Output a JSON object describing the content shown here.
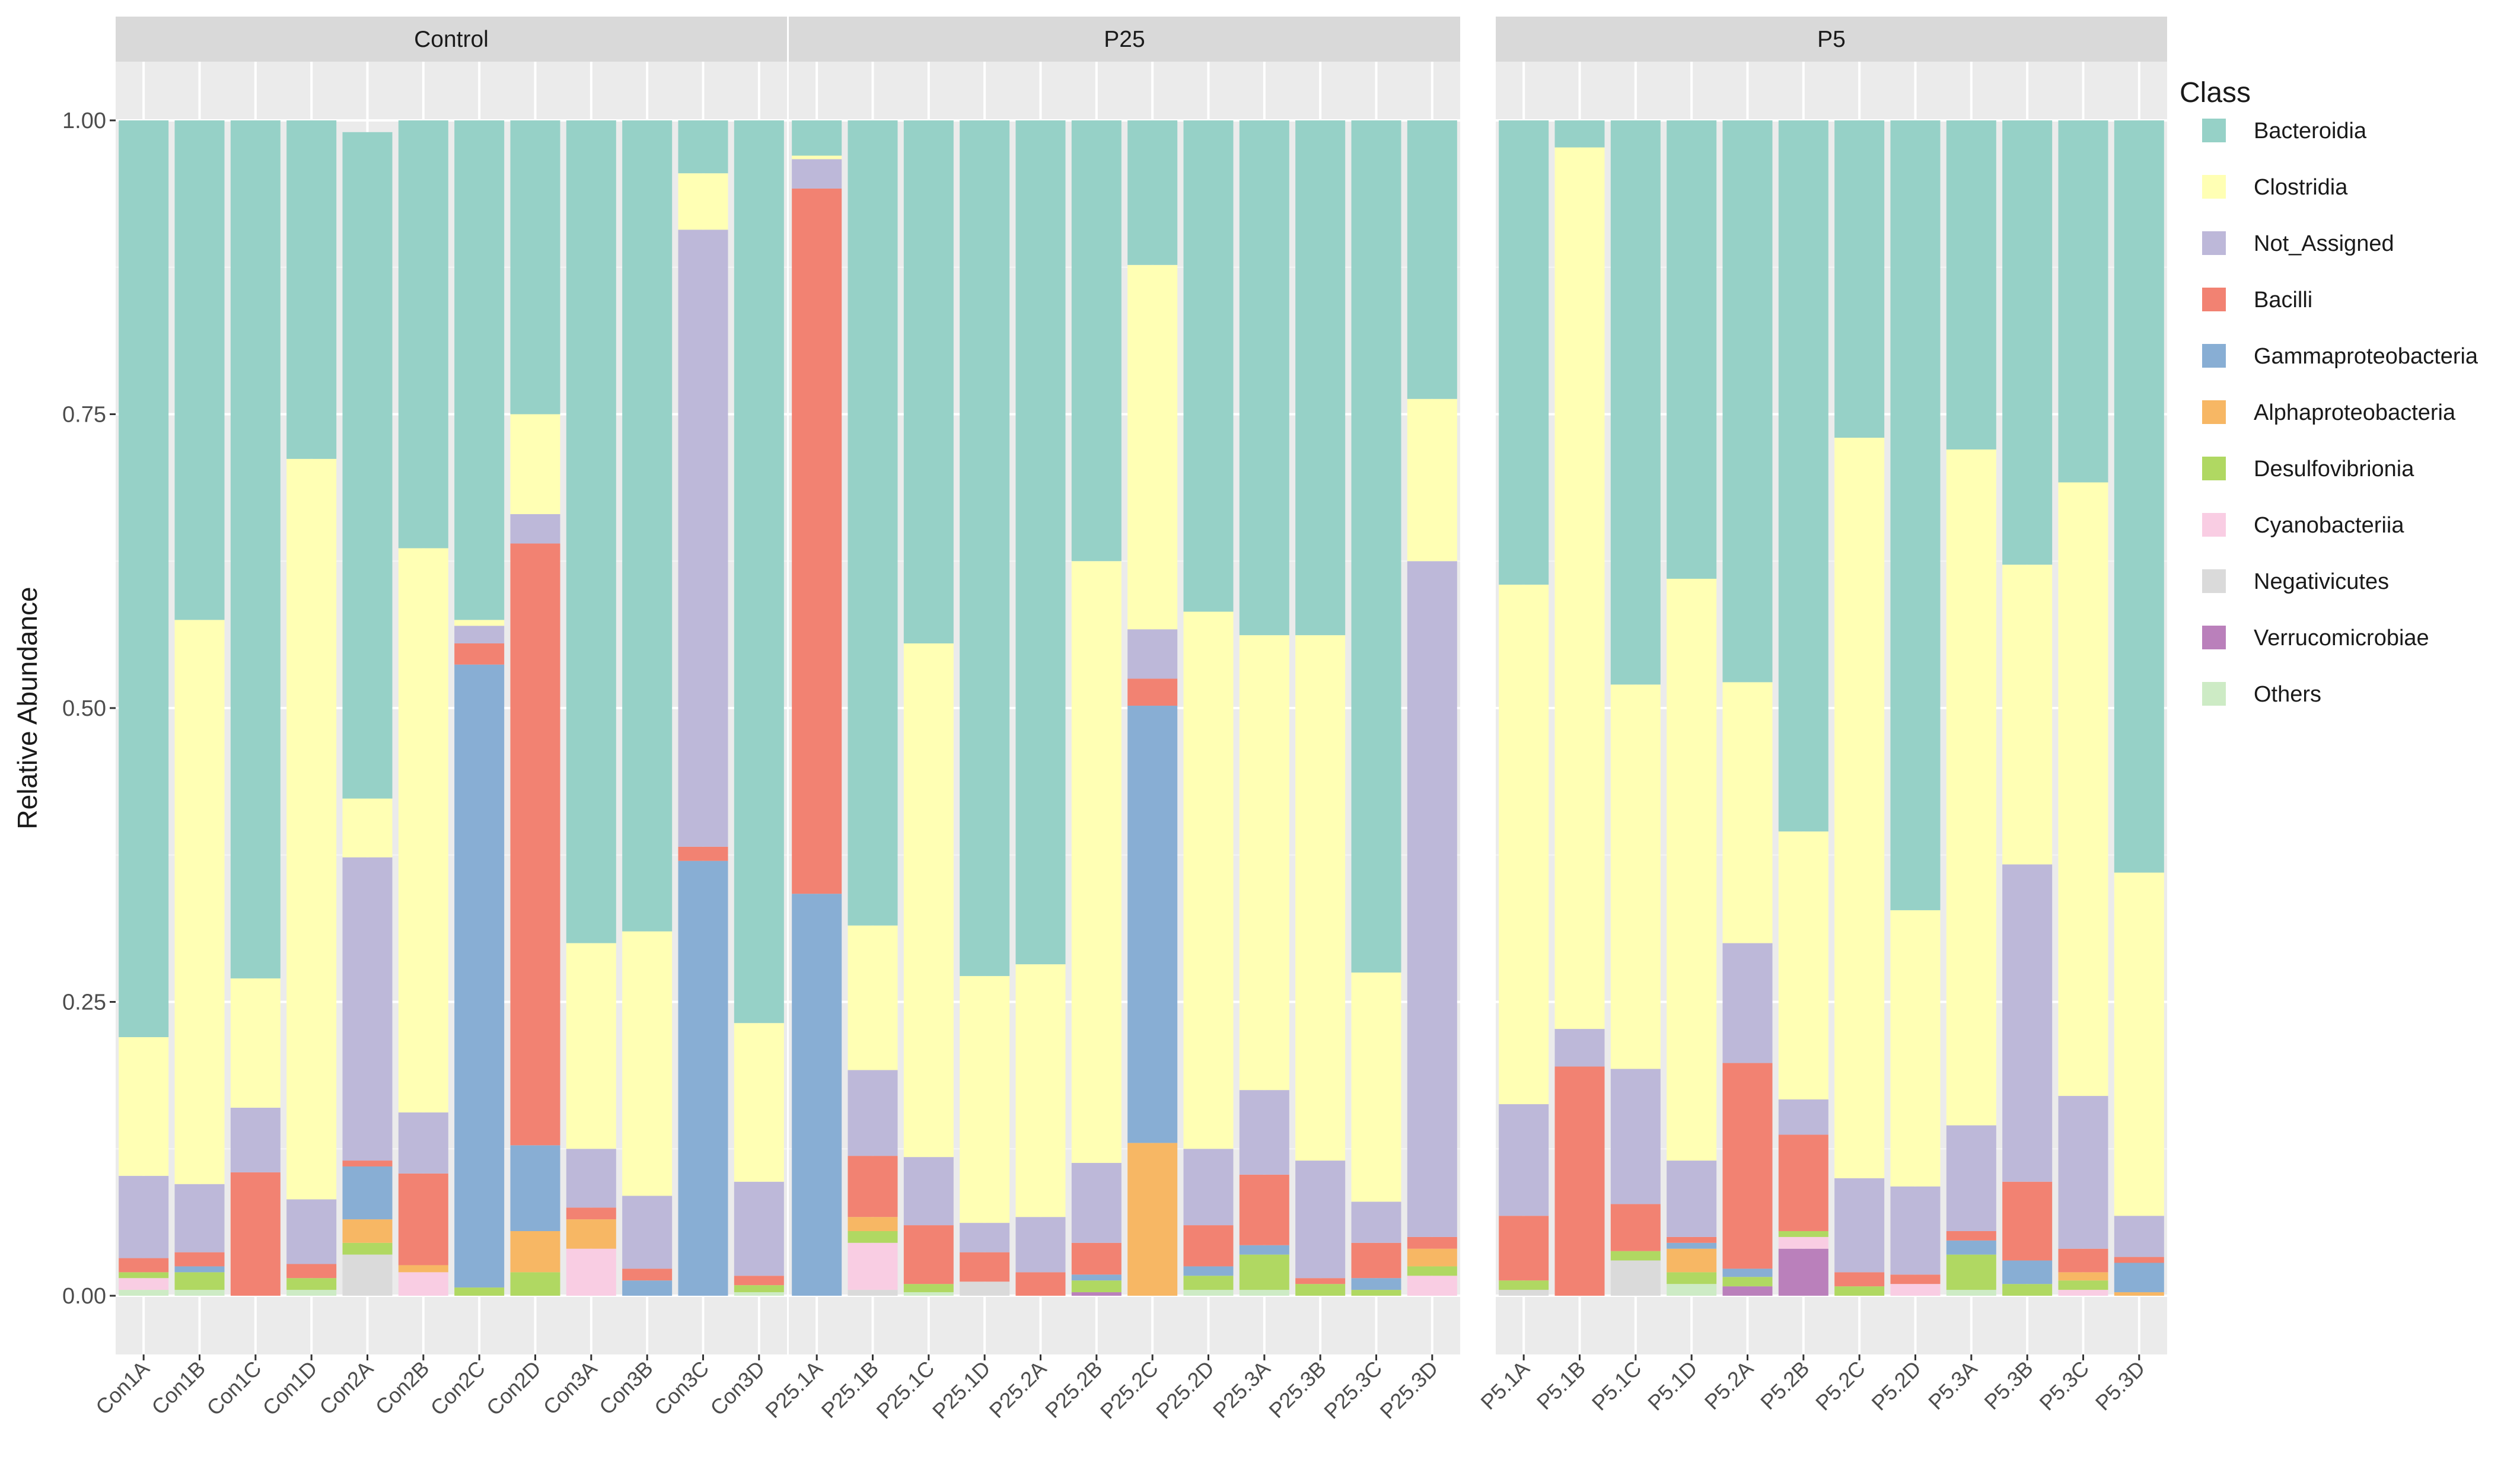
{
  "chart_data": {
    "type": "stacked-bar",
    "ylabel": "Relative Abundance",
    "xlabel": "",
    "ylim": [
      0,
      1
    ],
    "yticks": [
      0,
      0.25,
      0.5,
      0.75,
      1
    ],
    "ytick_labels": [
      "0.00",
      "0.25",
      "0.50",
      "0.75",
      "1.00"
    ],
    "legend": {
      "title": "Class",
      "position": "right",
      "entries": [
        "Bacteroidia",
        "Clostridia",
        "Not_Assigned",
        "Bacilli",
        "Gammaproteobacteria",
        "Alphaproteobacteria",
        "Desulfovibrionia",
        "Cyanobacteriia",
        "Negativicutes",
        "Verrucomicrobiae",
        "Others"
      ]
    },
    "colors": {
      "Bacteroidia": "#96D1C7",
      "Clostridia": "#FFFFB4",
      "Not_Assigned": "#BDB8D9",
      "Bacilli": "#F28272",
      "Gammaproteobacteria": "#88AED4",
      "Alphaproteobacteria": "#F7B764",
      "Desulfovibrionia": "#B0D862",
      "Cyanobacteriia": "#F9CDE3",
      "Negativicutes": "#DADADA",
      "Verrucomicrobiae": "#BA80BB",
      "Others": "#CDEBC5"
    },
    "stack_order": [
      "Others",
      "Verrucomicrobiae",
      "Negativicutes",
      "Cyanobacteriia",
      "Desulfovibrionia",
      "Alphaproteobacteria",
      "Gammaproteobacteria",
      "Bacilli",
      "Not_Assigned",
      "Clostridia",
      "Bacteroidia"
    ],
    "panels": [
      {
        "title": "Control",
        "categories": [
          "Con1A",
          "Con1B",
          "Con1C",
          "Con1D",
          "Con2A",
          "Con2B",
          "Con2C",
          "Con2D",
          "Con3A",
          "Con3B",
          "Con3C",
          "Con3D"
        ],
        "series": [
          {
            "name": "Others",
            "values": [
              0.005,
              0.005,
              0.0,
              0.005,
              0.0,
              0.0,
              0.0,
              0.0,
              0.0,
              0.0,
              0.0,
              0.003
            ]
          },
          {
            "name": "Verrucomicrobiae",
            "values": [
              0.0,
              0.0,
              0.0,
              0.0,
              0.0,
              0.0,
              0.0,
              0.0,
              0.0,
              0.0,
              0.0,
              0.0
            ]
          },
          {
            "name": "Negativicutes",
            "values": [
              0.0,
              0.0,
              0.0,
              0.0,
              0.035,
              0.0,
              0.0,
              0.0,
              0.0,
              0.0,
              0.0,
              0.0
            ]
          },
          {
            "name": "Cyanobacteriia",
            "values": [
              0.01,
              0.0,
              0.0,
              0.0,
              0.0,
              0.02,
              0.0,
              0.0,
              0.04,
              0.0,
              0.0,
              0.0
            ]
          },
          {
            "name": "Desulfovibrionia",
            "values": [
              0.005,
              0.015,
              0.0,
              0.01,
              0.01,
              0.0,
              0.007,
              0.02,
              0.0,
              0.0,
              0.0,
              0.006
            ]
          },
          {
            "name": "Alphaproteobacteria",
            "values": [
              0.0,
              0.0,
              0.0,
              0.0,
              0.02,
              0.006,
              0.0,
              0.035,
              0.025,
              0.0,
              0.0,
              0.0
            ]
          },
          {
            "name": "Gammaproteobacteria",
            "values": [
              0.0,
              0.005,
              0.0,
              0.0,
              0.045,
              0.0,
              0.53,
              0.073,
              0.0,
              0.013,
              0.37,
              0.0
            ]
          },
          {
            "name": "Bacilli",
            "values": [
              0.012,
              0.012,
              0.105,
              0.012,
              0.005,
              0.078,
              0.018,
              0.512,
              0.01,
              0.01,
              0.012,
              0.008
            ]
          },
          {
            "name": "Not_Assigned",
            "values": [
              0.07,
              0.058,
              0.055,
              0.055,
              0.258,
              0.052,
              0.015,
              0.025,
              0.05,
              0.062,
              0.525,
              0.08
            ]
          },
          {
            "name": "Clostridia",
            "values": [
              0.118,
              0.48,
              0.11,
              0.63,
              0.05,
              0.48,
              0.005,
              0.085,
              0.175,
              0.225,
              0.048,
              0.135
            ]
          },
          {
            "name": "Bacteroidia",
            "values": [
              0.78,
              0.425,
              0.73,
              0.288,
              0.567,
              0.364,
              0.425,
              0.25,
              0.7,
              0.69,
              0.045,
              0.768
            ]
          }
        ]
      },
      {
        "title": "P25",
        "categories": [
          "P25.1A",
          "P25.1B",
          "P25.1C",
          "P25.1D",
          "P25.2A",
          "P25.2B",
          "P25.2C",
          "P25.2D",
          "P25.3A",
          "P25.3B",
          "P25.3C",
          "P25.3D"
        ],
        "series": [
          {
            "name": "Others",
            "values": [
              0.0,
              0.0,
              0.003,
              0.0,
              0.0,
              0.0,
              0.0,
              0.005,
              0.005,
              0.0,
              0.0,
              0.0
            ]
          },
          {
            "name": "Verrucomicrobiae",
            "values": [
              0.0,
              0.0,
              0.0,
              0.0,
              0.0,
              0.003,
              0.0,
              0.0,
              0.0,
              0.0,
              0.0,
              0.0
            ]
          },
          {
            "name": "Negativicutes",
            "values": [
              0.0,
              0.005,
              0.0,
              0.012,
              0.0,
              0.0,
              0.0,
              0.0,
              0.0,
              0.0,
              0.0,
              0.0
            ]
          },
          {
            "name": "Cyanobacteriia",
            "values": [
              0.0,
              0.04,
              0.0,
              0.0,
              0.0,
              0.0,
              0.0,
              0.0,
              0.0,
              0.0,
              0.0,
              0.017
            ]
          },
          {
            "name": "Desulfovibrionia",
            "values": [
              0.0,
              0.01,
              0.007,
              0.0,
              0.0,
              0.01,
              0.0,
              0.012,
              0.03,
              0.01,
              0.005,
              0.008
            ]
          },
          {
            "name": "Alphaproteobacteria",
            "values": [
              0.0,
              0.012,
              0.0,
              0.0,
              0.0,
              0.0,
              0.13,
              0.0,
              0.0,
              0.0,
              0.0,
              0.015
            ]
          },
          {
            "name": "Gammaproteobacteria",
            "values": [
              0.342,
              0.0,
              0.0,
              0.0,
              0.0,
              0.005,
              0.372,
              0.008,
              0.008,
              0.0,
              0.01,
              0.0
            ]
          },
          {
            "name": "Bacilli",
            "values": [
              0.6,
              0.052,
              0.05,
              0.025,
              0.02,
              0.027,
              0.023,
              0.035,
              0.06,
              0.005,
              0.03,
              0.01
            ]
          },
          {
            "name": "Not_Assigned",
            "values": [
              0.025,
              0.073,
              0.058,
              0.025,
              0.047,
              0.068,
              0.042,
              0.065,
              0.072,
              0.1,
              0.035,
              0.575
            ]
          },
          {
            "name": "Clostridia",
            "values": [
              0.003,
              0.123,
              0.437,
              0.21,
              0.215,
              0.512,
              0.31,
              0.457,
              0.387,
              0.447,
              0.195,
              0.138
            ]
          },
          {
            "name": "Bacteroidia",
            "values": [
              0.03,
              0.685,
              0.445,
              0.728,
              0.718,
              0.375,
              0.123,
              0.418,
              0.438,
              0.438,
              0.725,
              0.237
            ]
          }
        ]
      },
      {
        "title": "P5",
        "categories": [
          "P5.1A",
          "P5.1B",
          "P5.1C",
          "P5.1D",
          "P5.2A",
          "P5.2B",
          "P5.2C",
          "P5.2D",
          "P5.3A",
          "P5.3B",
          "P5.3C",
          "P5.3D"
        ],
        "series": [
          {
            "name": "Others",
            "values": [
              0.0,
              0.0,
              0.0,
              0.01,
              0.0,
              0.0,
              0.0,
              0.0,
              0.005,
              0.0,
              0.0,
              0.0
            ]
          },
          {
            "name": "Verrucomicrobiae",
            "values": [
              0.0,
              0.0,
              0.0,
              0.0,
              0.008,
              0.04,
              0.0,
              0.0,
              0.0,
              0.0,
              0.0,
              0.0
            ]
          },
          {
            "name": "Negativicutes",
            "values": [
              0.005,
              0.0,
              0.03,
              0.0,
              0.0,
              0.0,
              0.0,
              0.0,
              0.0,
              0.0,
              0.0,
              0.0
            ]
          },
          {
            "name": "Cyanobacteriia",
            "values": [
              0.0,
              0.0,
              0.0,
              0.0,
              0.0,
              0.01,
              0.0,
              0.01,
              0.0,
              0.0,
              0.005,
              0.0
            ]
          },
          {
            "name": "Desulfovibrionia",
            "values": [
              0.008,
              0.0,
              0.008,
              0.01,
              0.008,
              0.005,
              0.008,
              0.0,
              0.03,
              0.01,
              0.008,
              0.0
            ]
          },
          {
            "name": "Alphaproteobacteria",
            "values": [
              0.0,
              0.0,
              0.0,
              0.02,
              0.0,
              0.0,
              0.0,
              0.0,
              0.0,
              0.0,
              0.007,
              0.003
            ]
          },
          {
            "name": "Gammaproteobacteria",
            "values": [
              0.0,
              0.0,
              0.0,
              0.005,
              0.007,
              0.0,
              0.0,
              0.0,
              0.012,
              0.02,
              0.0,
              0.025
            ]
          },
          {
            "name": "Bacilli",
            "values": [
              0.055,
              0.195,
              0.04,
              0.005,
              0.175,
              0.082,
              0.012,
              0.008,
              0.008,
              0.067,
              0.02,
              0.005
            ]
          },
          {
            "name": "Not_Assigned",
            "values": [
              0.095,
              0.032,
              0.115,
              0.065,
              0.102,
              0.03,
              0.08,
              0.075,
              0.09,
              0.27,
              0.13,
              0.035
            ]
          },
          {
            "name": "Clostridia",
            "values": [
              0.442,
              0.75,
              0.327,
              0.495,
              0.222,
              0.228,
              0.63,
              0.235,
              0.575,
              0.255,
              0.522,
              0.292
            ]
          },
          {
            "name": "Bacteroidia",
            "values": [
              0.395,
              0.023,
              0.48,
              0.39,
              0.478,
              0.605,
              0.27,
              0.672,
              0.28,
              0.378,
              0.308,
              0.64
            ]
          }
        ]
      }
    ]
  }
}
